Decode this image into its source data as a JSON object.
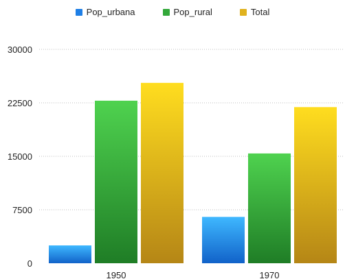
{
  "chart_data": {
    "type": "bar",
    "categories": [
      "1950",
      "1970"
    ],
    "series": [
      {
        "name": "Pop_urbana",
        "values": [
          2500,
          6500
        ],
        "color": "#1e7fe6"
      },
      {
        "name": "Pop_rural",
        "values": [
          22800,
          15400
        ],
        "color": "#33a83a"
      },
      {
        "name": "Total",
        "values": [
          25300,
          21900
        ],
        "color": "#e0b21f"
      }
    ],
    "yticks": [
      "0",
      "7500",
      "15000",
      "22500",
      "30000"
    ],
    "ylim": [
      0,
      30000
    ],
    "grid": true,
    "legend_position": "top-center"
  }
}
